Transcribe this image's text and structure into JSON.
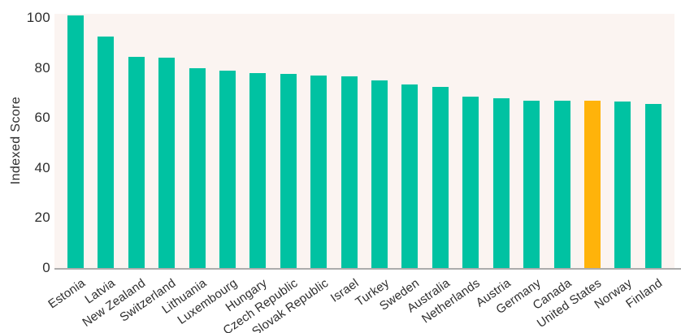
{
  "chart_data": {
    "type": "bar",
    "ylabel": "Indexed Score",
    "ylim": [
      0,
      100
    ],
    "yticks": [
      100,
      80,
      60,
      40,
      20,
      0
    ],
    "grid": false,
    "legend_position": "none",
    "categories": [
      "Estonia",
      "Latvia",
      "New Zealand",
      "Switzerland",
      "Lithuania",
      "Luxembourg",
      "Hungary",
      "Czech Republic",
      "Slovak Republic",
      "Israel",
      "Turkey",
      "Sweden",
      "Australia",
      "Netherlands",
      "Austria",
      "Germany",
      "Canada",
      "United States",
      "Norway",
      "Finland"
    ],
    "values": [
      101,
      92.5,
      84.5,
      84,
      80,
      79,
      78,
      77.5,
      77,
      76.5,
      75,
      73.5,
      72.5,
      68.5,
      68,
      67,
      67,
      67,
      66.5,
      65.5
    ],
    "highlight_category": "United States",
    "colors": {
      "bar": "#00C2A2",
      "highlight": "#FFB30A",
      "plot_background": "#FBF4F1",
      "axis_line": "#ACACAC",
      "text": "#2E2E2E",
      "page_background": "#FFFFFF"
    }
  }
}
